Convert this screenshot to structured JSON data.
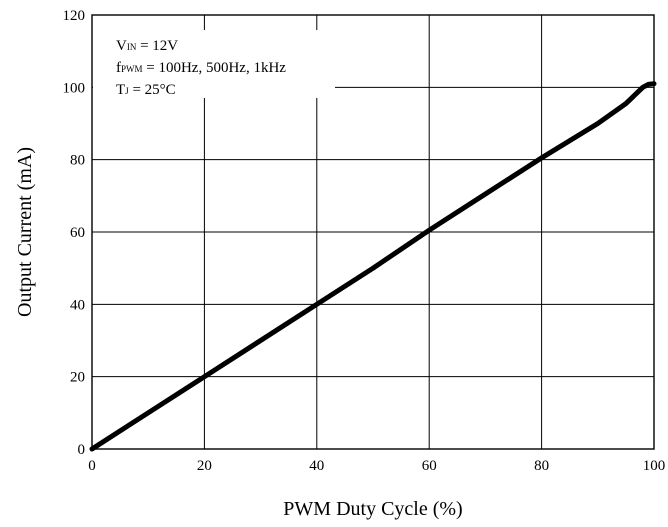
{
  "chart_data": {
    "type": "line",
    "title": "",
    "xlabel": "PWM Duty Cycle (%)",
    "ylabel": "Output Current (mA)",
    "xlim": [
      0,
      100
    ],
    "ylim": [
      0,
      120
    ],
    "x_ticks": [
      "0",
      "20",
      "40",
      "60",
      "80",
      "100"
    ],
    "y_ticks": [
      "0",
      "20",
      "40",
      "60",
      "80",
      "100",
      "120"
    ],
    "grid": true,
    "series": [
      {
        "x": [
          0,
          10,
          20,
          30,
          40,
          50,
          60,
          70,
          80,
          90,
          95,
          97,
          98,
          99,
          100
        ],
        "y": [
          0,
          10,
          20,
          30,
          40,
          50,
          60.5,
          70.5,
          80.5,
          90,
          95.5,
          98.5,
          100,
          100.8,
          101
        ]
      }
    ],
    "annotation": {
      "vin_main": "V",
      "vin_sub": "IN",
      "vin_rest": " = 12V",
      "fpwm_main": "f",
      "fpwm_sub": "PWM",
      "fpwm_rest": " = 100Hz, 500Hz, 1kHz",
      "tj_main": "T",
      "tj_sub": "J",
      "tj_rest": " = 25°C"
    }
  }
}
